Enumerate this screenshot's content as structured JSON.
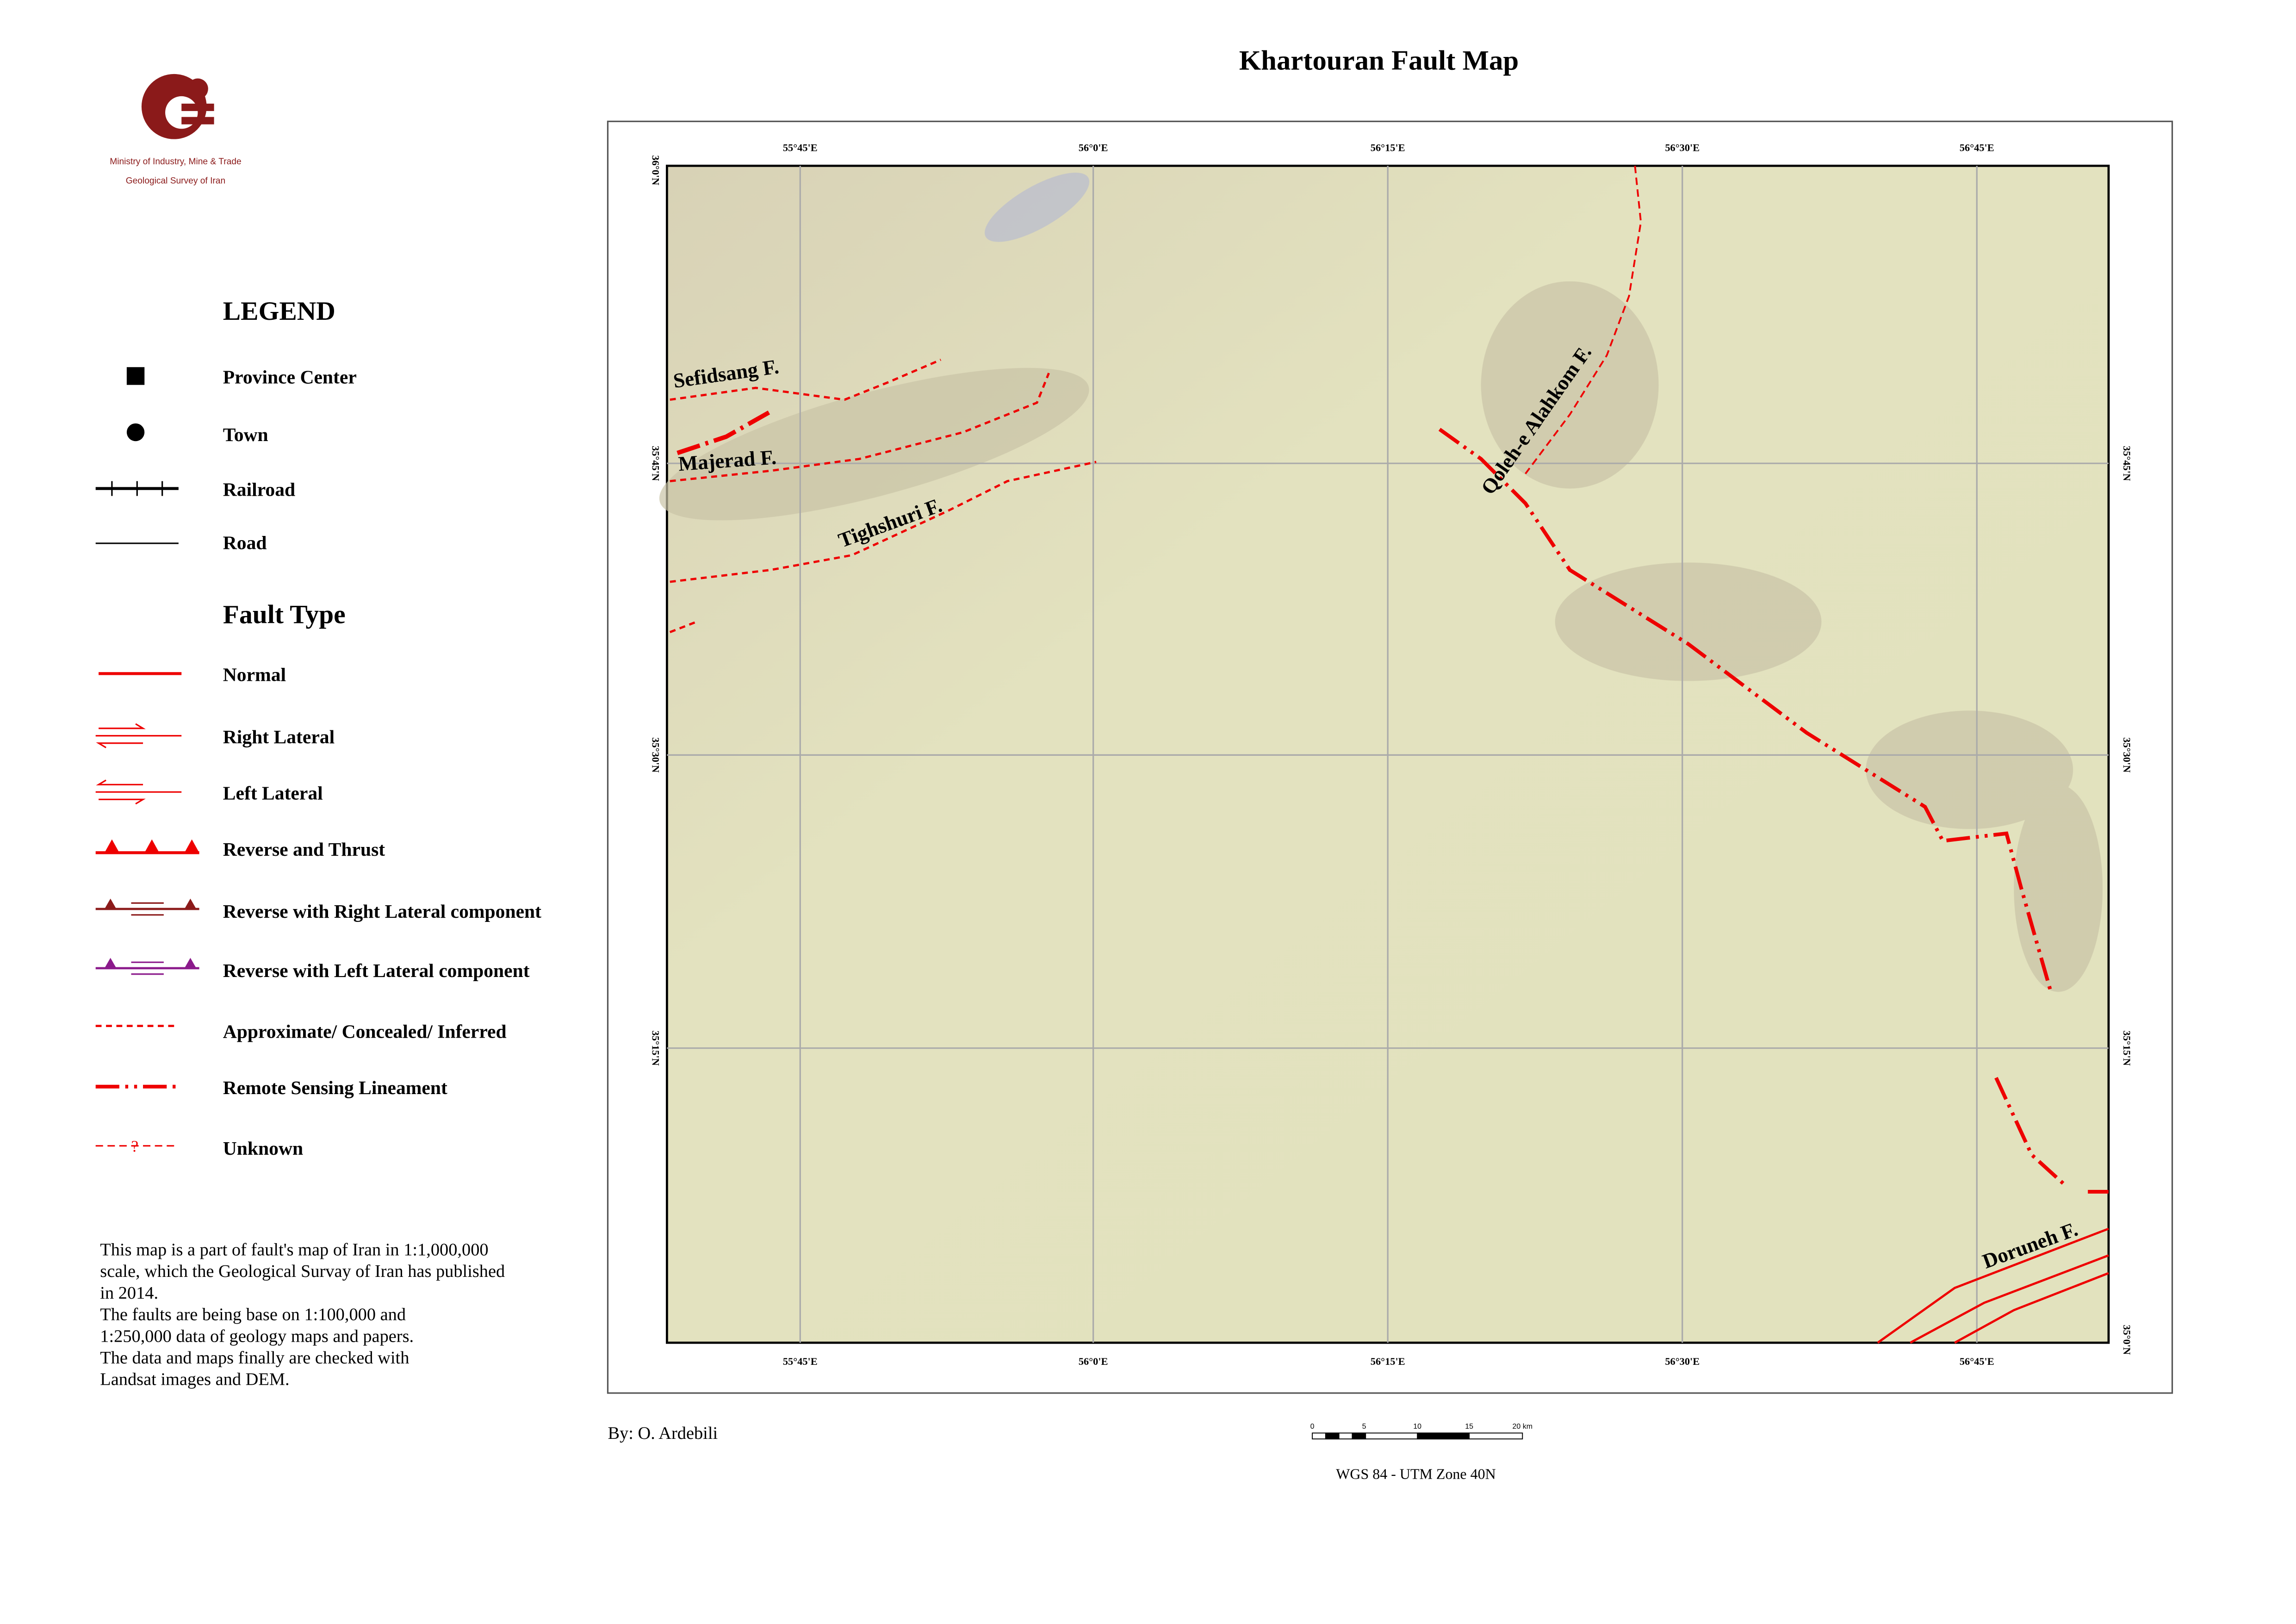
{
  "title": "Khartouran Fault Map",
  "logo": {
    "line1": "Ministry of Industry, Mine & Trade",
    "line2": "Geological Survey of Iran"
  },
  "legend": {
    "title": "LEGEND",
    "symbols": [
      "Province Center",
      "Town",
      "Railroad",
      "Road"
    ],
    "fault_type_title": "Fault Type",
    "fault_types": [
      "Normal",
      "Right Lateral",
      "Left Lateral",
      "Reverse and Thrust",
      "Reverse with Right Lateral component",
      "Reverse with Left Lateral component",
      "Approximate/ Concealed/ Inferred",
      "Remote Sensing Lineament",
      "Unknown"
    ]
  },
  "note": [
    "This map is a part of fault's map of Iran in 1:1,000,000",
    "scale, which the Geological Survay of Iran has published",
    "in 2014.",
    "The faults are being base on 1:100,000 and",
    "1:250,000 data of geology maps and papers.",
    "The data and maps finally are checked with",
    "Landsat images and DEM."
  ],
  "map": {
    "top_labels": [
      "55°45'E",
      "56°0'E",
      "56°15'E",
      "56°30'E",
      "56°45'E"
    ],
    "bottom_labels": [
      "55°45'E",
      "56°0'E",
      "56°15'E",
      "56°30'E",
      "56°45'E"
    ],
    "left_labels": [
      "36°0'N",
      "35°45'N",
      "35°30'N",
      "35°15'N"
    ],
    "right_labels": [
      "35°45'N",
      "35°30'N",
      "35°15'N",
      "35°0'N"
    ],
    "fault_names": [
      "Sefidsang F.",
      "Majerad F.",
      "Tighshuri F.",
      "Qoleh-e Alahkom F.",
      "Doruneh F."
    ]
  },
  "author": "By: O. Ardebili",
  "scale_bar": [
    "0",
    "5",
    "10",
    "15",
    "20 km"
  ],
  "projection": "WGS 84 - UTM Zone 40N"
}
